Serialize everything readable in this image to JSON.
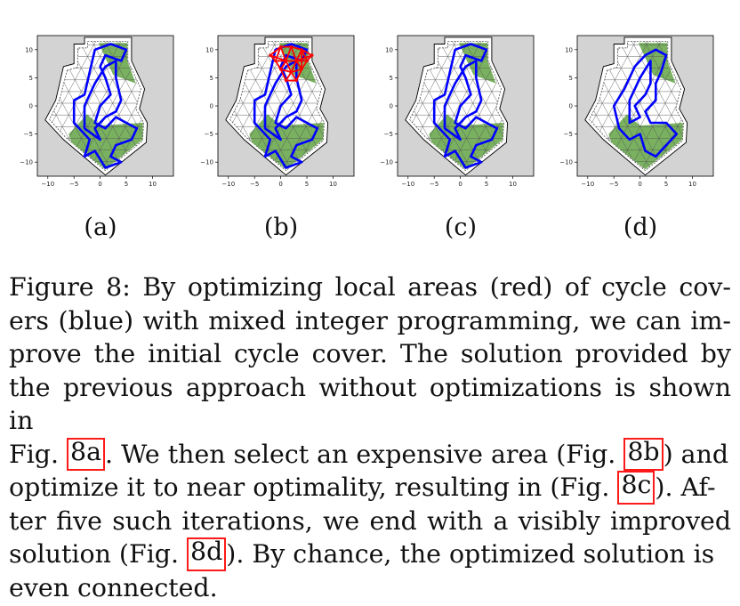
{
  "figure": {
    "panels": [
      {
        "id": "a",
        "label": "(a)",
        "has_local_area": false
      },
      {
        "id": "b",
        "label": "(b)",
        "has_local_area": true
      },
      {
        "id": "c",
        "label": "(c)",
        "has_local_area": false
      },
      {
        "id": "d",
        "label": "(d)",
        "has_local_area": false
      }
    ],
    "axes": {
      "x_ticks": [
        "−10",
        "−5",
        "0",
        "5",
        "10"
      ],
      "y_ticks": [
        "10",
        "5",
        "0",
        "−5",
        "−10"
      ],
      "x_tick_values": [
        -10,
        -5,
        0,
        5,
        10
      ],
      "y_tick_values": [
        10,
        5,
        0,
        -5,
        -10
      ],
      "xlim": [
        -12,
        14
      ],
      "ylim": [
        -12.5,
        12.5
      ]
    },
    "colors": {
      "background": "#d3d3d3",
      "polygon": "#ffffff",
      "coverage": "#6aa84f",
      "mesh": "#555555",
      "cycle": "#0000ff",
      "local_area": "#ff0000"
    }
  },
  "caption": {
    "lines": [
      {
        "segments": [
          {
            "text": "Figure 8: By optimizing local areas (red) of cycle cov-"
          }
        ]
      },
      {
        "segments": [
          {
            "text": "ers (blue) with mixed integer programming, we can im-"
          }
        ]
      },
      {
        "segments": [
          {
            "text": "prove the initial cycle cover. The solution provided by"
          }
        ]
      },
      {
        "segments": [
          {
            "text": "the previous approach without optimizations is shown in"
          }
        ]
      },
      {
        "segments": [
          {
            "text": "Fig. "
          },
          {
            "text": "8a",
            "ref": true
          },
          {
            "text": ". We then select an expensive area (Fig. "
          },
          {
            "text": "8b",
            "ref": true
          },
          {
            "text": ") and"
          }
        ]
      },
      {
        "segments": [
          {
            "text": "optimize it to near optimality, resulting in (Fig. "
          },
          {
            "text": "8c",
            "ref": true
          },
          {
            "text": "). Af-"
          }
        ]
      },
      {
        "segments": [
          {
            "text": "ter five such iterations, we end with a visibly improved"
          }
        ]
      },
      {
        "segments": [
          {
            "text": "solution (Fig. "
          },
          {
            "text": "8d",
            "ref": true
          },
          {
            "text": "). By chance, the optimized solution is"
          }
        ]
      },
      {
        "segments": [
          {
            "text": "even connected."
          }
        ],
        "last": true
      }
    ]
  }
}
